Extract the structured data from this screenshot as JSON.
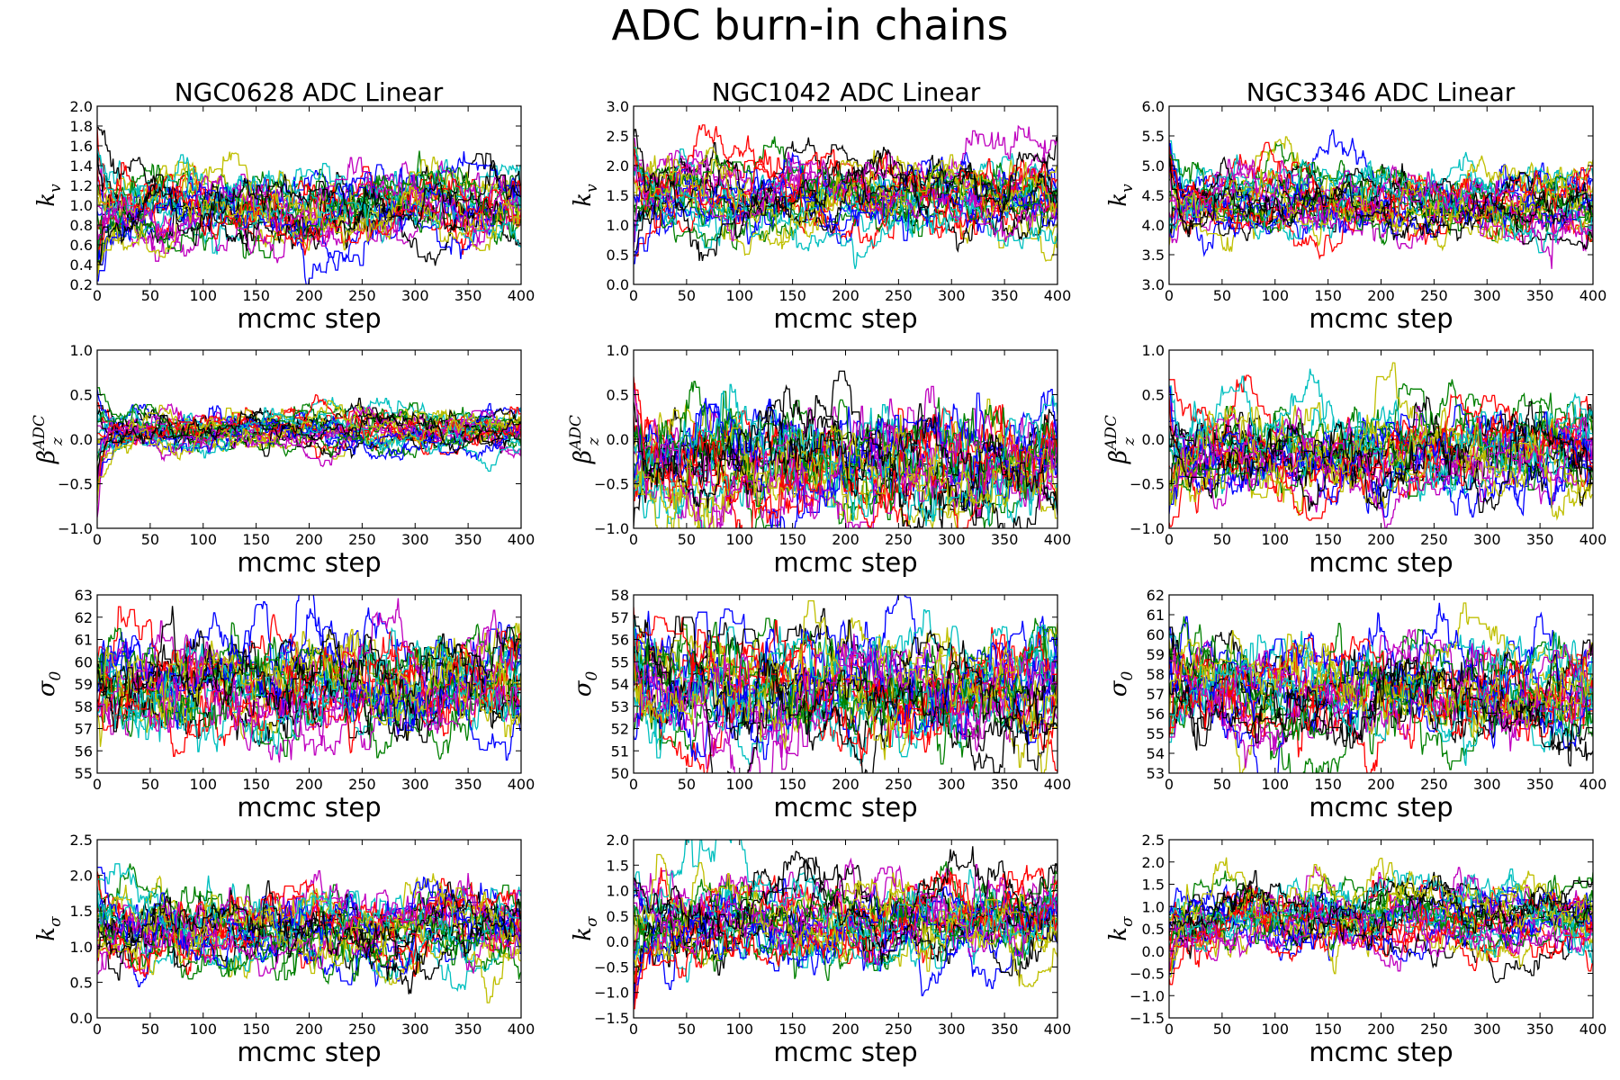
{
  "figure": {
    "title": "ADC burn-in chains",
    "columns": [
      "NGC0628 ADC Linear",
      "NGC1042 ADC Linear",
      "NGC3346 ADC Linear"
    ]
  },
  "colors": [
    "#0000ff",
    "#008000",
    "#ff0000",
    "#00bfbf",
    "#bf00bf",
    "#bfbf00",
    "#000000"
  ],
  "chart_data": [
    {
      "type": "line",
      "galaxy": "NGC0628",
      "parameter": "k_v",
      "ylabel": "k",
      "ylabel_sub": "v",
      "xlabel": "mcmc step",
      "xlim": [
        0,
        400
      ],
      "ylim": [
        0.2,
        2.0
      ],
      "xticks": [
        "0",
        "50",
        "100",
        "150",
        "200",
        "250",
        "300",
        "350",
        "400"
      ],
      "yticks": [
        "0.2",
        "0.4",
        "0.6",
        "0.8",
        "1.0",
        "1.2",
        "1.4",
        "1.6",
        "1.8",
        "2.0"
      ],
      "walkers": 28,
      "steps": 400,
      "center": 0.98,
      "spread": 0.16,
      "init_range": [
        0.2,
        1.9
      ],
      "burn_in_steps": 15
    },
    {
      "type": "line",
      "galaxy": "NGC1042",
      "parameter": "k_v",
      "ylabel": "k",
      "ylabel_sub": "v",
      "xlabel": "mcmc step",
      "xlim": [
        0,
        400
      ],
      "ylim": [
        0.0,
        3.0
      ],
      "xticks": [
        "0",
        "50",
        "100",
        "150",
        "200",
        "250",
        "300",
        "350",
        "400"
      ],
      "yticks": [
        "0.0",
        "0.5",
        "1.0",
        "1.5",
        "2.0",
        "2.5",
        "3.0"
      ],
      "walkers": 28,
      "steps": 400,
      "center": 1.5,
      "spread": 0.27,
      "init_range": [
        0.3,
        2.7
      ],
      "burn_in_steps": 15
    },
    {
      "type": "line",
      "galaxy": "NGC3346",
      "parameter": "k_v",
      "ylabel": "k",
      "ylabel_sub": "v",
      "xlabel": "mcmc step",
      "xlim": [
        0,
        400
      ],
      "ylim": [
        3.0,
        6.0
      ],
      "xticks": [
        "0",
        "50",
        "100",
        "150",
        "200",
        "250",
        "300",
        "350",
        "400"
      ],
      "yticks": [
        "3.0",
        "3.5",
        "4.0",
        "4.5",
        "5.0",
        "5.5",
        "6.0"
      ],
      "walkers": 28,
      "steps": 400,
      "center": 4.35,
      "spread": 0.25,
      "init_range": [
        3.6,
        5.5
      ],
      "burn_in_steps": 15
    },
    {
      "type": "line",
      "galaxy": "NGC0628",
      "parameter": "beta_z^ADC",
      "ylabel": "β",
      "ylabel_sub": "z",
      "ylabel_sup": "ADC",
      "xlabel": "mcmc step",
      "xlim": [
        0,
        400
      ],
      "ylim": [
        -1.0,
        1.0
      ],
      "xticks": [
        "0",
        "50",
        "100",
        "150",
        "200",
        "250",
        "300",
        "350",
        "400"
      ],
      "yticks": [
        "−1.0",
        "−0.5",
        "0.0",
        "0.5",
        "1.0"
      ],
      "walkers": 28,
      "steps": 400,
      "center": 0.12,
      "spread": 0.1,
      "init_range": [
        -0.9,
        0.8
      ],
      "burn_in_steps": 25
    },
    {
      "type": "line",
      "galaxy": "NGC1042",
      "parameter": "beta_z^ADC",
      "ylabel": "β",
      "ylabel_sub": "z",
      "ylabel_sup": "ADC",
      "xlabel": "mcmc step",
      "xlim": [
        0,
        400
      ],
      "ylim": [
        -1.0,
        1.0
      ],
      "xticks": [
        "0",
        "50",
        "100",
        "150",
        "200",
        "250",
        "300",
        "350",
        "400"
      ],
      "yticks": [
        "−1.0",
        "−0.5",
        "0.0",
        "0.5",
        "1.0"
      ],
      "walkers": 28,
      "steps": 400,
      "center": -0.3,
      "spread": 0.28,
      "init_range": [
        -1.0,
        0.8
      ],
      "burn_in_steps": 15
    },
    {
      "type": "line",
      "galaxy": "NGC3346",
      "parameter": "beta_z^ADC",
      "ylabel": "β",
      "ylabel_sub": "z",
      "ylabel_sup": "ADC",
      "xlabel": "mcmc step",
      "xlim": [
        0,
        400
      ],
      "ylim": [
        -1.0,
        1.0
      ],
      "xticks": [
        "0",
        "50",
        "100",
        "150",
        "200",
        "250",
        "300",
        "350",
        "400"
      ],
      "yticks": [
        "−1.0",
        "−0.5",
        "0.0",
        "0.5",
        "1.0"
      ],
      "walkers": 28,
      "steps": 400,
      "center": -0.15,
      "spread": 0.22,
      "init_range": [
        -1.0,
        0.85
      ],
      "burn_in_steps": 15
    },
    {
      "type": "line",
      "galaxy": "NGC0628",
      "parameter": "sigma_0",
      "ylabel": "σ",
      "ylabel_sub": "0",
      "xlabel": "mcmc step",
      "xlim": [
        0,
        400
      ],
      "ylim": [
        55,
        63
      ],
      "xticks": [
        "0",
        "50",
        "100",
        "150",
        "200",
        "250",
        "300",
        "350",
        "400"
      ],
      "yticks": [
        "55",
        "56",
        "57",
        "58",
        "59",
        "60",
        "61",
        "62",
        "63"
      ],
      "walkers": 28,
      "steps": 400,
      "center": 59.0,
      "spread": 1.05,
      "init_range": [
        57.5,
        60.5
      ],
      "burn_in_steps": 10
    },
    {
      "type": "line",
      "galaxy": "NGC1042",
      "parameter": "sigma_0",
      "ylabel": "σ",
      "ylabel_sub": "0",
      "xlabel": "mcmc step",
      "xlim": [
        0,
        400
      ],
      "ylim": [
        50,
        58
      ],
      "xticks": [
        "0",
        "50",
        "100",
        "150",
        "200",
        "250",
        "300",
        "350",
        "400"
      ],
      "yticks": [
        "50",
        "51",
        "52",
        "53",
        "54",
        "55",
        "56",
        "57",
        "58"
      ],
      "walkers": 28,
      "steps": 400,
      "center": 53.8,
      "spread": 1.15,
      "init_range": [
        51.5,
        57.5
      ],
      "burn_in_steps": 10
    },
    {
      "type": "line",
      "galaxy": "NGC3346",
      "parameter": "sigma_0",
      "ylabel": "σ",
      "ylabel_sub": "0",
      "xlabel": "mcmc step",
      "xlim": [
        0,
        400
      ],
      "ylim": [
        53,
        62
      ],
      "xticks": [
        "0",
        "50",
        "100",
        "150",
        "200",
        "250",
        "300",
        "350",
        "400"
      ],
      "yticks": [
        "53",
        "54",
        "55",
        "56",
        "57",
        "58",
        "59",
        "60",
        "61",
        "62"
      ],
      "walkers": 28,
      "steps": 400,
      "center": 57.2,
      "spread": 1.15,
      "init_range": [
        54.5,
        60.5
      ],
      "burn_in_steps": 10
    },
    {
      "type": "line",
      "galaxy": "NGC0628",
      "parameter": "k_sigma",
      "ylabel": "k",
      "ylabel_sub": "σ",
      "xlabel": "mcmc step",
      "xlim": [
        0,
        400
      ],
      "ylim": [
        0.0,
        2.5
      ],
      "xticks": [
        "0",
        "50",
        "100",
        "150",
        "200",
        "250",
        "300",
        "350",
        "400"
      ],
      "yticks": [
        "0.0",
        "0.5",
        "1.0",
        "1.5",
        "2.0",
        "2.5"
      ],
      "walkers": 28,
      "steps": 400,
      "center": 1.28,
      "spread": 0.24,
      "init_range": [
        0.6,
        2.3
      ],
      "burn_in_steps": 10
    },
    {
      "type": "line",
      "galaxy": "NGC1042",
      "parameter": "k_sigma",
      "ylabel": "k",
      "ylabel_sub": "σ",
      "xlabel": "mcmc step",
      "xlim": [
        0,
        400
      ],
      "ylim": [
        -1.5,
        2.0
      ],
      "xticks": [
        "0",
        "50",
        "100",
        "150",
        "200",
        "250",
        "300",
        "350",
        "400"
      ],
      "yticks": [
        "−1.5",
        "−1.0",
        "−0.5",
        "0.0",
        "0.5",
        "1.0",
        "1.5",
        "2.0"
      ],
      "walkers": 28,
      "steps": 400,
      "center": 0.38,
      "spread": 0.36,
      "init_range": [
        -1.4,
        1.3
      ],
      "burn_in_steps": 20
    },
    {
      "type": "line",
      "galaxy": "NGC3346",
      "parameter": "k_sigma",
      "ylabel": "k",
      "ylabel_sub": "σ",
      "xlabel": "mcmc step",
      "xlim": [
        0,
        400
      ],
      "ylim": [
        -1.5,
        2.5
      ],
      "xticks": [
        "0",
        "50",
        "100",
        "150",
        "200",
        "250",
        "300",
        "350",
        "400"
      ],
      "yticks": [
        "−1.5",
        "−1.0",
        "−0.5",
        "0.0",
        "0.5",
        "1.0",
        "1.5",
        "2.0",
        "2.5"
      ],
      "walkers": 28,
      "steps": 400,
      "center": 0.75,
      "spread": 0.33,
      "init_range": [
        -0.7,
        1.2
      ],
      "burn_in_steps": 20
    }
  ]
}
